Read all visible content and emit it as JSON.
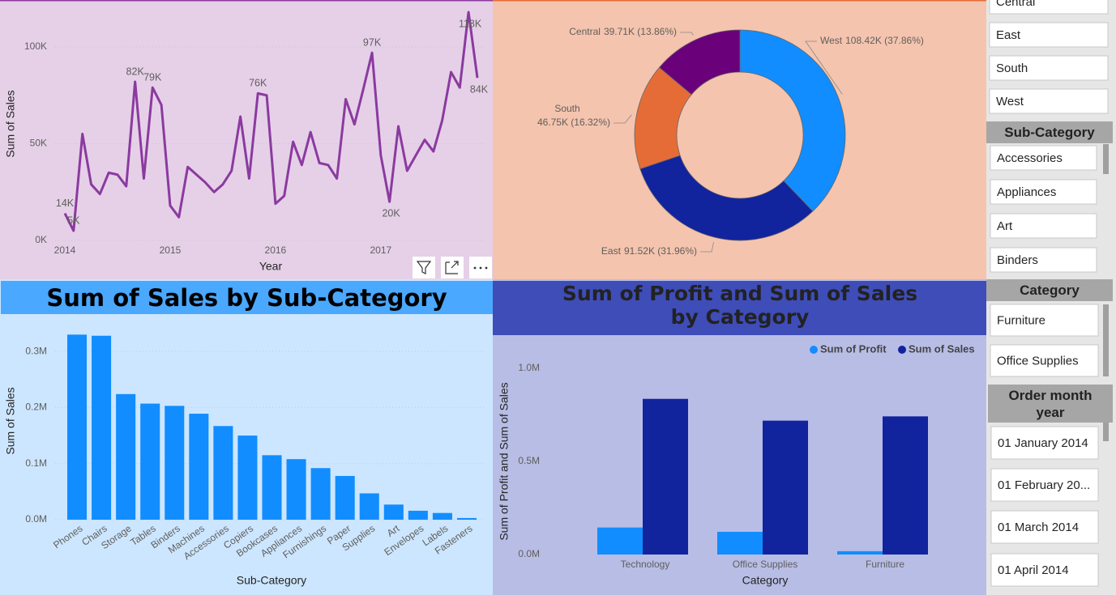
{
  "chart_data": [
    {
      "type": "line",
      "x_label": "Year",
      "y_label": "Sum of Sales",
      "color": "#8b3a9f",
      "x": [
        2014.0,
        2014.083,
        2014.167,
        2014.25,
        2014.333,
        2014.417,
        2014.5,
        2014.583,
        2014.667,
        2014.75,
        2014.833,
        2014.917,
        2015.0,
        2015.083,
        2015.167,
        2015.25,
        2015.333,
        2015.417,
        2015.5,
        2015.583,
        2015.667,
        2015.75,
        2015.833,
        2015.917,
        2016.0,
        2016.083,
        2016.167,
        2016.25,
        2016.333,
        2016.417,
        2016.5,
        2016.583,
        2016.667,
        2016.75,
        2016.833,
        2016.917,
        2017.0,
        2017.083,
        2017.167,
        2017.25,
        2017.333,
        2017.417,
        2017.5,
        2017.583,
        2017.667,
        2017.75,
        2017.833,
        2017.917
      ],
      "values": [
        14000,
        5000,
        55000,
        29000,
        24000,
        35000,
        34000,
        28000,
        82000,
        32000,
        79000,
        70000,
        18000,
        12000,
        38000,
        34000,
        30000,
        25000,
        29000,
        36000,
        64000,
        32000,
        76000,
        75000,
        19000,
        23000,
        51000,
        39000,
        56000,
        40000,
        39000,
        32000,
        73000,
        60000,
        78000,
        97000,
        44000,
        20000,
        59000,
        36000,
        44000,
        52000,
        46000,
        62000,
        87000,
        79000,
        118000,
        84000
      ],
      "value_labels": [
        "14K",
        "5K",
        null,
        null,
        null,
        null,
        null,
        null,
        "82K",
        null,
        "79K",
        null,
        null,
        null,
        null,
        null,
        null,
        null,
        null,
        null,
        null,
        null,
        "76K",
        null,
        null,
        null,
        null,
        null,
        null,
        null,
        null,
        null,
        null,
        null,
        null,
        "97K",
        null,
        "20K",
        null,
        null,
        null,
        null,
        null,
        null,
        null,
        null,
        "118K",
        "84K"
      ],
      "xlim": [
        2014,
        2017.917
      ],
      "xticks": [
        2014,
        2015,
        2016,
        2017
      ],
      "ylim": [
        0,
        120000
      ],
      "yticks": [
        {
          "value": 0,
          "label": "0K"
        },
        {
          "value": 50000,
          "label": "50K"
        },
        {
          "value": 100000,
          "label": "100K"
        }
      ],
      "grid": true
    },
    {
      "type": "pie",
      "donut": true,
      "categories": [
        "West",
        "East",
        "South",
        "Central"
      ],
      "values": [
        108420,
        91520,
        46750,
        39710
      ],
      "value_labels": [
        "108.42K (37.86%)",
        "91.52K (31.96%)",
        "46.75K (16.32%)",
        "39.71K (13.86%)"
      ],
      "colors": [
        "#118dff",
        "#12239e",
        "#e66c37",
        "#6b007b"
      ]
    },
    {
      "type": "bar",
      "title": "Sum of Sales by Sub-Category",
      "x_label": "Sub-Category",
      "y_label": "Sum of Sales",
      "color": "#118dff",
      "categories": [
        "Phones",
        "Chairs",
        "Storage",
        "Tables",
        "Binders",
        "Machines",
        "Accessories",
        "Copiers",
        "Bookcases",
        "Appliances",
        "Furnishings",
        "Paper",
        "Supplies",
        "Art",
        "Envelopes",
        "Labels",
        "Fasteners"
      ],
      "values": [
        330000,
        328000,
        224000,
        207000,
        203000,
        189000,
        167000,
        150000,
        115000,
        108000,
        92000,
        78000,
        47000,
        27000,
        16000,
        12000,
        3000
      ],
      "ylim": [
        0,
        350000
      ],
      "yticks": [
        {
          "value": 0,
          "label": "0.0M"
        },
        {
          "value": 100000,
          "label": "0.1M"
        },
        {
          "value": 200000,
          "label": "0.2M"
        },
        {
          "value": 300000,
          "label": "0.3M"
        }
      ],
      "grid": true
    },
    {
      "type": "grouped_bar",
      "title": "Sum of Profit and Sum of Sales by Category",
      "x_label": "Category",
      "y_label": "Sum of Profit and Sum of Sales",
      "categories": [
        "Technology",
        "Office Supplies",
        "Furniture"
      ],
      "series": [
        {
          "name": "Sum of Profit",
          "color": "#118dff",
          "values": [
            145000,
            122000,
            18000
          ]
        },
        {
          "name": "Sum of Sales",
          "color": "#12239e",
          "values": [
            836000,
            719000,
            742000
          ]
        }
      ],
      "ylim": [
        0,
        1050000
      ],
      "yticks": [
        {
          "value": 0,
          "label": "0.0M"
        },
        {
          "value": 500000,
          "label": "0.5M"
        },
        {
          "value": 1000000,
          "label": "1.0M"
        }
      ],
      "legend": "top-right"
    }
  ],
  "slicers": [
    {
      "items": [
        "Central",
        "East",
        "South",
        "West"
      ]
    },
    {
      "header": "Sub-Category",
      "items": [
        "Accessories",
        "Appliances",
        "Art",
        "Binders"
      ]
    },
    {
      "header": "Category",
      "items": [
        "Furniture",
        "Office Supplies"
      ]
    },
    {
      "header": "Order month year",
      "items": [
        "01 January 2014",
        "01 February 20...",
        "01 March 2014",
        "01 April 2014"
      ]
    }
  ]
}
